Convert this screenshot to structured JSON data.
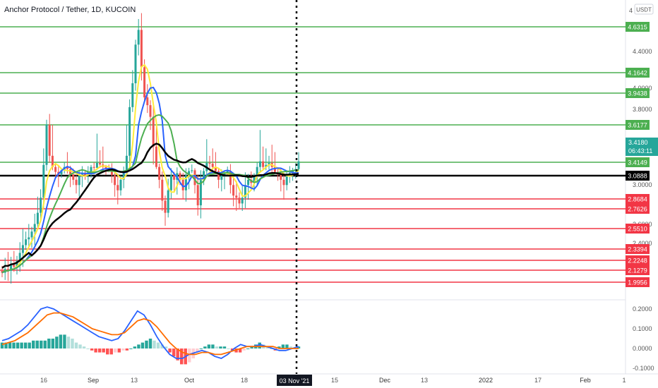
{
  "header": {
    "title": "Anchor Protocol / Tether, 1D, KUCOIN",
    "currency": "USDT",
    "scale_mark": "4"
  },
  "colors": {
    "green_level": "#4caf50",
    "red_level": "#f23645",
    "black_level": "#000000",
    "bull": "#26a69a",
    "bear": "#ef5350",
    "ma_yellow": "#ffeb3b",
    "ma_blue": "#2962ff",
    "ma_green": "#4caf50",
    "ma_black": "#000000",
    "macd": "#2962ff",
    "signal": "#ff6d00",
    "last_price": "#26a69a"
  },
  "chart_data": {
    "type": "candlestick",
    "symbol": "Anchor Protocol / Tether, 1D, KUCOIN",
    "y_axis_ticks": [
      "4.4000",
      "4.0000",
      "3.8000",
      "3.0000",
      "2.6000",
      "2.4000"
    ],
    "x_axis_ticks": [
      "16",
      "Sep",
      "13",
      "Oct",
      "18",
      "15",
      "Dec",
      "13",
      "2022",
      "17",
      "Feb",
      "1"
    ],
    "crosshair_date": "03 Nov '21",
    "levels": [
      {
        "value": "4.6315",
        "kind": "resistance"
      },
      {
        "value": "4.1642",
        "kind": "resistance"
      },
      {
        "value": "3.9438",
        "kind": "resistance"
      },
      {
        "value": "3.6177",
        "kind": "resistance"
      },
      {
        "value": "3.4149",
        "kind": "resistance"
      },
      {
        "value": "3.0888",
        "kind": "pivot"
      },
      {
        "value": "2.8684",
        "kind": "support"
      },
      {
        "value": "2.7626",
        "kind": "support"
      },
      {
        "value": "2.5510",
        "kind": "support"
      },
      {
        "value": "2.3394",
        "kind": "support"
      },
      {
        "value": "2.2248",
        "kind": "support"
      },
      {
        "value": "2.1279",
        "kind": "support"
      },
      {
        "value": "1.9956",
        "kind": "support"
      }
    ],
    "last_price": "3.4180",
    "countdown": "06:43:11",
    "candles_close": [
      2.1,
      2.14,
      2.12,
      2.18,
      2.16,
      2.22,
      2.3,
      2.38,
      2.44,
      2.46,
      2.52,
      2.6,
      2.72,
      2.88,
      3.35,
      3.62,
      3.45,
      3.3,
      3.18,
      3.12,
      3.22,
      3.3,
      3.25,
      3.12,
      3.05,
      3.0,
      3.12,
      3.15,
      3.1,
      3.18,
      3.3,
      3.28,
      3.4,
      3.36,
      3.3,
      3.25,
      3.22,
      3.1,
      3.0,
      2.95,
      3.05,
      3.2,
      3.45,
      3.8,
      4.05,
      4.45,
      4.6,
      4.22,
      3.9,
      3.82,
      3.7,
      3.5,
      3.3,
      3.05,
      2.85,
      2.72,
      2.95,
      3.1,
      3.05,
      3.15,
      3.05,
      2.95,
      3.1,
      3.2,
      3.22,
      3.0,
      2.8,
      3.05,
      3.2,
      3.4,
      3.38,
      3.3,
      3.2,
      3.05,
      3.1,
      3.15,
      3.2,
      3.0,
      2.9,
      2.88,
      2.82,
      2.88,
      3.0,
      3.05,
      3.02,
      3.1,
      3.3,
      3.42,
      3.3,
      3.35,
      3.4,
      3.3,
      3.18,
      3.12,
      3.05,
      3.0,
      3.1,
      3.15,
      3.2,
      3.25,
      3.42
    ],
    "candles_open": [
      2.12,
      2.1,
      2.14,
      2.12,
      2.18,
      2.16,
      2.22,
      2.3,
      2.38,
      2.44,
      2.46,
      2.52,
      2.6,
      2.72,
      2.88,
      3.35,
      3.62,
      3.45,
      3.3,
      3.18,
      3.12,
      3.22,
      3.3,
      3.25,
      3.12,
      3.05,
      3.0,
      3.12,
      3.15,
      3.1,
      3.18,
      3.3,
      3.28,
      3.4,
      3.36,
      3.3,
      3.25,
      3.22,
      3.1,
      3.0,
      2.95,
      3.05,
      3.2,
      3.45,
      3.8,
      4.05,
      4.45,
      4.6,
      4.22,
      3.9,
      3.82,
      3.7,
      3.5,
      3.3,
      3.05,
      2.85,
      2.72,
      2.95,
      3.1,
      3.05,
      3.15,
      3.05,
      2.95,
      3.1,
      3.2,
      3.22,
      3.0,
      2.8,
      3.05,
      3.2,
      3.4,
      3.38,
      3.3,
      3.2,
      3.05,
      3.1,
      3.15,
      3.2,
      3.0,
      2.9,
      2.88,
      2.82,
      2.88,
      3.0,
      3.05,
      3.02,
      3.1,
      3.3,
      3.42,
      3.3,
      3.35,
      3.4,
      3.3,
      3.18,
      3.12,
      3.05,
      3.0,
      3.1,
      3.15,
      3.2,
      3.25
    ],
    "macd_axis_ticks": [
      "0.2000",
      "0.1000",
      "0.0000",
      "-0.1000"
    ],
    "macd_histogram": [
      0.03,
      0.03,
      0.03,
      0.03,
      0.03,
      0.03,
      0.03,
      0.03,
      0.04,
      0.04,
      0.04,
      0.04,
      0.05,
      0.05,
      0.06,
      0.07,
      0.07,
      0.06,
      0.05,
      0.03,
      0.02,
      0.01,
      0.0,
      -0.01,
      -0.02,
      -0.02,
      -0.02,
      -0.03,
      -0.03,
      -0.02,
      -0.02,
      -0.01,
      -0.01,
      0.0,
      0.01,
      0.02,
      0.03,
      0.04,
      0.05,
      0.04,
      0.03,
      0.02,
      0.01,
      -0.02,
      -0.04,
      -0.06,
      -0.08,
      -0.08,
      -0.07,
      -0.05,
      -0.02,
      0.0,
      0.01,
      0.02,
      0.02,
      0.01,
      0.01,
      0.01,
      0.0,
      -0.01,
      -0.02,
      -0.02,
      -0.01,
      0.0,
      0.01,
      0.02,
      0.03,
      0.02,
      0.01,
      0.0,
      -0.01,
      0.01,
      0.02,
      0.02,
      0.01,
      0.0,
      0.01
    ],
    "macd_line": [
      0.04,
      0.05,
      0.07,
      0.09,
      0.12,
      0.16,
      0.2,
      0.21,
      0.2,
      0.18,
      0.16,
      0.14,
      0.12,
      0.1,
      0.08,
      0.06,
      0.05,
      0.04,
      0.05,
      0.09,
      0.14,
      0.19,
      0.17,
      0.12,
      0.06,
      0.01,
      -0.03,
      -0.05,
      -0.05,
      -0.03,
      -0.02,
      -0.01,
      -0.02,
      -0.04,
      -0.05,
      -0.03,
      0.0,
      0.02,
      0.01,
      0.01,
      0.02,
      0.01,
      0.0,
      -0.01,
      -0.01,
      0.0,
      0.01
    ],
    "signal_line": [
      0.02,
      0.03,
      0.04,
      0.06,
      0.08,
      0.11,
      0.14,
      0.17,
      0.18,
      0.18,
      0.17,
      0.16,
      0.14,
      0.12,
      0.1,
      0.09,
      0.08,
      0.07,
      0.07,
      0.08,
      0.11,
      0.14,
      0.15,
      0.14,
      0.11,
      0.07,
      0.03,
      0.0,
      -0.02,
      -0.03,
      -0.03,
      -0.02,
      -0.02,
      -0.03,
      -0.03,
      -0.02,
      -0.01,
      0.0,
      0.01,
      0.01,
      0.01,
      0.01,
      0.01,
      0.0,
      0.0,
      0.0,
      0.0
    ]
  }
}
